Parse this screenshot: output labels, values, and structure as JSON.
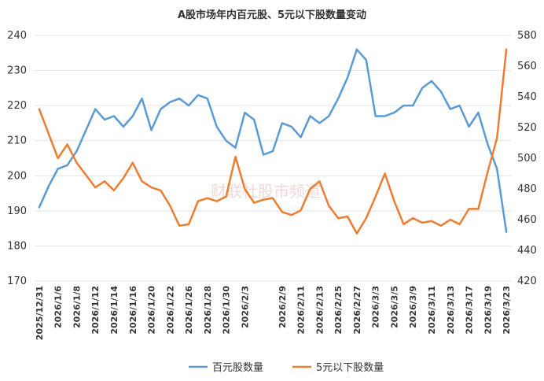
{
  "chart_data": {
    "type": "line",
    "title": "A股市场年内百元股、5元以下股数量变动",
    "left_axis": {
      "ylim": [
        170,
        240
      ],
      "ticks": [
        170,
        180,
        190,
        200,
        210,
        220,
        230,
        240
      ]
    },
    "right_axis": {
      "ylim": [
        420,
        580
      ],
      "ticks": [
        420,
        440,
        460,
        480,
        500,
        520,
        540,
        560,
        580
      ]
    },
    "x": [
      "2025/12/31",
      "2026/1/5",
      "2026/1/6",
      "2026/1/7",
      "2026/1/8",
      "2026/1/9",
      "2026/1/12",
      "2026/1/13",
      "2026/1/14",
      "2026/1/15",
      "2026/1/16",
      "2026/1/19",
      "2026/1/20",
      "2026/1/21",
      "2026/1/22",
      "2026/1/23",
      "2026/1/26",
      "2026/1/27",
      "2026/1/28",
      "2026/1/29",
      "2026/1/30",
      "2026/2/2",
      "2026/2/3",
      "2026/2/4",
      "2026/2/5",
      "2026/2/6",
      "2026/2/9",
      "2026/2/10",
      "2026/2/11",
      "2026/2/12",
      "2026/2/13",
      "2026/2/24",
      "2026/2/25",
      "2026/2/26",
      "2026/2/27",
      "2026/3/2",
      "2026/3/3",
      "2026/3/4",
      "2026/3/5",
      "2026/3/6",
      "2026/3/9",
      "2026/3/10",
      "2026/3/11",
      "2026/3/12",
      "2026/3/13",
      "2026/3/16",
      "2026/3/17",
      "2026/3/18",
      "2026/3/19",
      "2026/3/20",
      "2026/3/23"
    ],
    "x_tick_labels": [
      "2025/12/31",
      "2026/1/6",
      "2026/1/8",
      "2026/1/12",
      "2026/1/14",
      "2026/1/16",
      "2026/1/20",
      "2026/1/22",
      "2026/1/26",
      "2026/1/28",
      "2026/1/30",
      "2026/2/3",
      "2026/2/9",
      "2026/2/11",
      "2026/2/13",
      "2026/2/25",
      "2026/2/27",
      "2026/3/3",
      "2026/3/5",
      "2026/3/9",
      "2026/3/11",
      "2026/3/13",
      "2026/3/17",
      "2026/3/19",
      "2026/3/23"
    ],
    "series": [
      {
        "name": "百元股数量",
        "axis": "left",
        "color": "#5B9BD5",
        "values": [
          191,
          197,
          202,
          203,
          207,
          213,
          219,
          216,
          217,
          214,
          217,
          222,
          213,
          219,
          221,
          222,
          220,
          223,
          222,
          214,
          210,
          208,
          218,
          216,
          206,
          207,
          215,
          214,
          211,
          217,
          215,
          217,
          222,
          228,
          236,
          233,
          217,
          217,
          218,
          220,
          220,
          225,
          227,
          224,
          219,
          220,
          214,
          218,
          209,
          202,
          184
        ]
      },
      {
        "name": "5元以下股数量",
        "axis": "right",
        "color": "#ED7D31",
        "values": [
          532,
          516,
          500,
          509,
          497,
          489,
          481,
          485,
          479,
          487,
          497,
          485,
          481,
          479,
          469,
          456,
          457,
          472,
          474,
          472,
          475,
          501,
          480,
          471,
          473,
          474,
          465,
          463,
          466,
          480,
          485,
          469,
          461,
          462,
          451,
          461,
          475,
          490,
          472,
          457,
          461,
          458,
          459,
          456,
          460,
          457,
          467,
          467,
          491,
          513,
          571
        ]
      }
    ],
    "legend_position": "bottom-center",
    "grid": true
  },
  "watermark": "财联社股市频道"
}
